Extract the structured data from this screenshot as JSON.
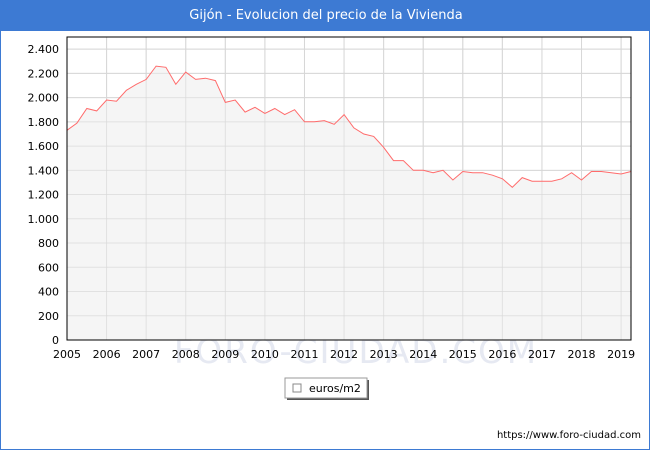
{
  "title": "Gijón - Evolucion del precio de la Vivienda",
  "watermark": "FORO-CIUDAD.COM",
  "source": "https://www.foro-ciudad.com",
  "colors": {
    "header": "#3d7ad3",
    "line": "#ff6b6b",
    "plot_bg": "#f4f4f4",
    "grid": "#d7d7d7"
  },
  "chart_data": {
    "type": "area",
    "title": "",
    "xlabel": "",
    "ylabel": "",
    "ylim": [
      0,
      2500
    ],
    "xlim": [
      2005,
      2019.25
    ],
    "yticks": [
      0,
      200,
      400,
      600,
      800,
      1000,
      1200,
      1400,
      1600,
      1800,
      2000,
      2200,
      2400
    ],
    "ytick_labels": [
      "0",
      "200",
      "400",
      "600",
      "800",
      "1.000",
      "1.200",
      "1.400",
      "1.600",
      "1.800",
      "2.000",
      "2.200",
      "2.400"
    ],
    "xticks": [
      2005,
      2006,
      2007,
      2008,
      2009,
      2010,
      2011,
      2012,
      2013,
      2014,
      2015,
      2016,
      2017,
      2018,
      2019
    ],
    "xtick_labels": [
      "2005",
      "2006",
      "2007",
      "2008",
      "2009",
      "2010",
      "2011",
      "2012",
      "2013",
      "2014",
      "2015",
      "2016",
      "2017",
      "2018",
      "2019"
    ],
    "grid": true,
    "legend": {
      "position": "bottom-center",
      "entries": [
        "euros/m2"
      ]
    },
    "series": [
      {
        "name": "euros/m2",
        "x": [
          2005.0,
          2005.25,
          2005.5,
          2005.75,
          2006.0,
          2006.25,
          2006.5,
          2006.75,
          2007.0,
          2007.25,
          2007.5,
          2007.75,
          2008.0,
          2008.25,
          2008.5,
          2008.75,
          2009.0,
          2009.25,
          2009.5,
          2009.75,
          2010.0,
          2010.25,
          2010.5,
          2010.75,
          2011.0,
          2011.25,
          2011.5,
          2011.75,
          2012.0,
          2012.25,
          2012.5,
          2012.75,
          2013.0,
          2013.25,
          2013.5,
          2013.75,
          2014.0,
          2014.25,
          2014.5,
          2014.75,
          2015.0,
          2015.25,
          2015.5,
          2015.75,
          2016.0,
          2016.25,
          2016.5,
          2016.75,
          2017.0,
          2017.25,
          2017.5,
          2017.75,
          2018.0,
          2018.25,
          2018.5,
          2018.75,
          2019.0,
          2019.25
        ],
        "values": [
          1730,
          1790,
          1910,
          1890,
          1980,
          1970,
          2060,
          2110,
          2150,
          2260,
          2250,
          2110,
          2210,
          2150,
          2160,
          2140,
          1960,
          1980,
          1880,
          1920,
          1870,
          1910,
          1860,
          1900,
          1800,
          1800,
          1810,
          1780,
          1860,
          1750,
          1700,
          1680,
          1590,
          1480,
          1480,
          1400,
          1400,
          1380,
          1400,
          1320,
          1390,
          1380,
          1380,
          1360,
          1330,
          1260,
          1340,
          1310,
          1310,
          1310,
          1330,
          1380,
          1320,
          1390,
          1390,
          1380,
          1370,
          1390
        ]
      }
    ]
  }
}
